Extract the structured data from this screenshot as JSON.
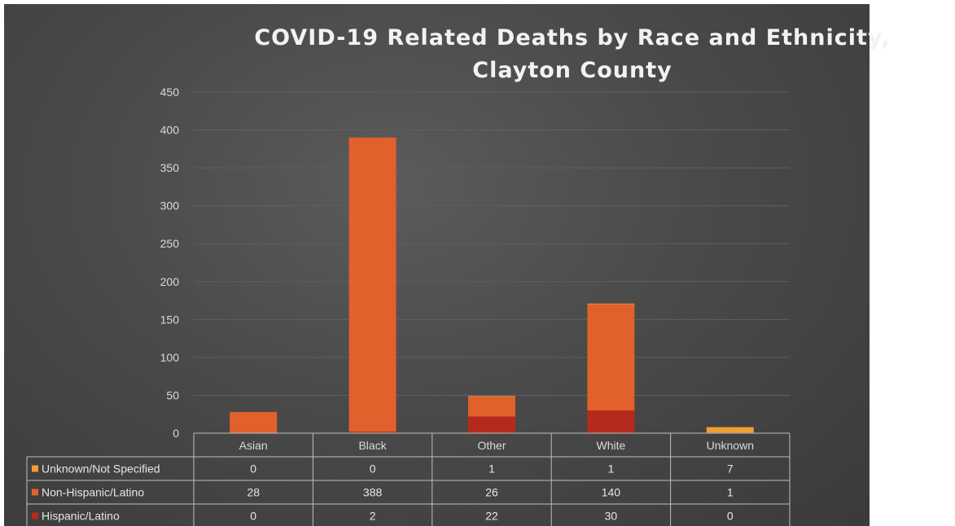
{
  "chart_data": {
    "type": "bar",
    "stacked": true,
    "title": "COVID-19 Related Deaths by Race and Ethnicity, Clayton County",
    "title_lines": [
      "COVID-19 Related Deaths by Race and Ethnicity,",
      "Clayton County"
    ],
    "categories": [
      "Asian",
      "Black",
      "Other",
      "White",
      "Unknown"
    ],
    "series": [
      {
        "name": "Hispanic/Latino",
        "values": [
          0,
          2,
          22,
          30,
          0
        ],
        "color": "#b52a1c"
      },
      {
        "name": "Non-Hispanic/Latino",
        "values": [
          28,
          388,
          26,
          140,
          1
        ],
        "color": "#e2602c"
      },
      {
        "name": "Unknown/Not Specified",
        "values": [
          0,
          0,
          1,
          1,
          7
        ],
        "color": "#f0a030"
      }
    ],
    "table_row_order": [
      "Unknown/Not Specified",
      "Non-Hispanic/Latino",
      "Hispanic/Latino"
    ],
    "ylim": [
      0,
      450
    ],
    "yticks": [
      0,
      50,
      100,
      150,
      200,
      250,
      300,
      350,
      400,
      450
    ],
    "xlabel": "",
    "ylabel": "",
    "grid": true,
    "legend": "data-table-below"
  },
  "colors": {
    "background": "#4a4a4a",
    "gridline": "#5f5f5f",
    "table_border": "#bfbfbf",
    "text": "#d9d9d9"
  }
}
